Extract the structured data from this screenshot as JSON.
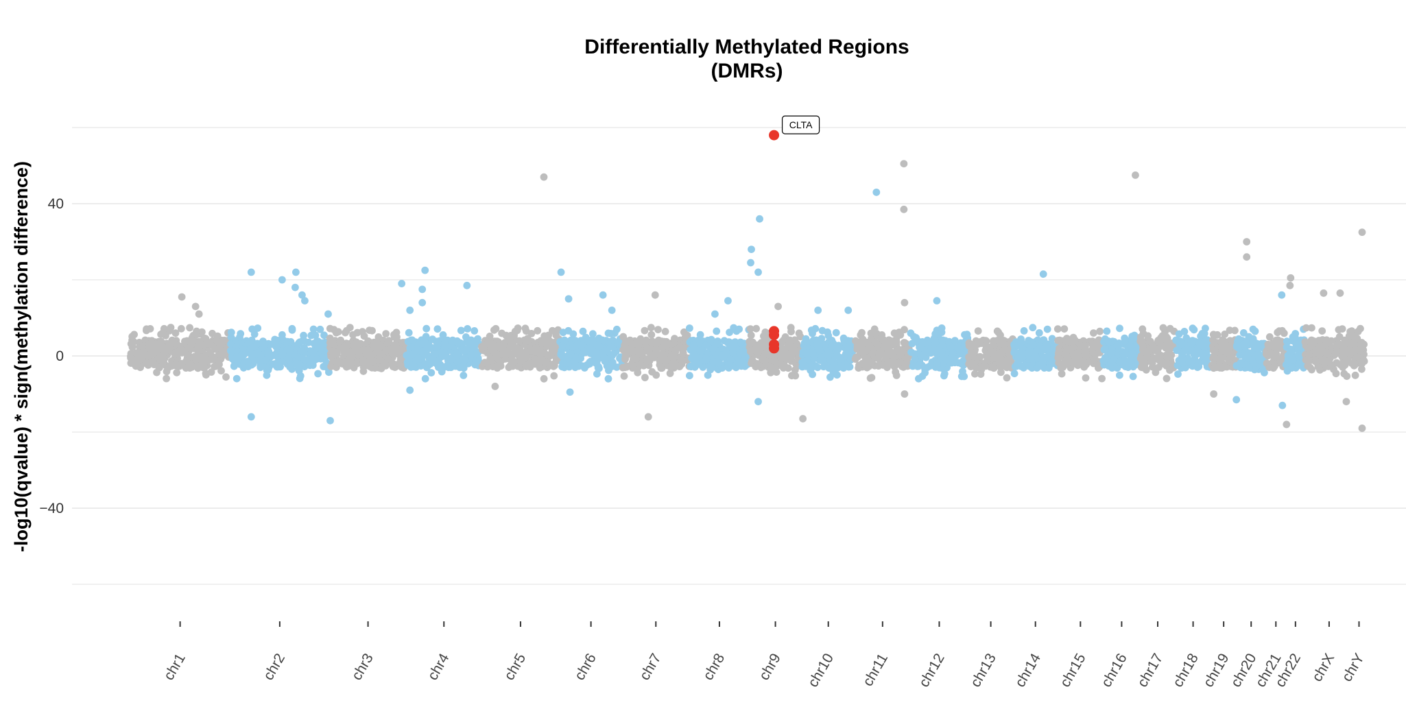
{
  "chart_data": {
    "type": "scatter",
    "title": [
      "Differentially Methylated Regions",
      "(DMRs)"
    ],
    "ylabel": "-log10(qvalue) * sign(methylation difference)",
    "xlabel": "",
    "ylim": [
      -60,
      60
    ],
    "yticks": [
      -40,
      0,
      40
    ],
    "grid": true,
    "legend": "none",
    "colors": {
      "gray": "#bdbdbd",
      "blue": "#93cbe9",
      "highlight": "#e8362a"
    },
    "chromosomes": [
      {
        "name": "chr1",
        "start": 0,
        "end": 145,
        "color": "gray"
      },
      {
        "name": "chr2",
        "start": 145,
        "end": 290,
        "color": "blue"
      },
      {
        "name": "chr3",
        "start": 290,
        "end": 402,
        "color": "gray"
      },
      {
        "name": "chr4",
        "start": 402,
        "end": 511,
        "color": "blue"
      },
      {
        "name": "chr5",
        "start": 511,
        "end": 625,
        "color": "gray"
      },
      {
        "name": "chr6",
        "start": 625,
        "end": 716,
        "color": "blue"
      },
      {
        "name": "chr7",
        "start": 716,
        "end": 814,
        "color": "gray"
      },
      {
        "name": "chr8",
        "start": 814,
        "end": 901,
        "color": "blue"
      },
      {
        "name": "chr9",
        "start": 901,
        "end": 977,
        "color": "gray"
      },
      {
        "name": "chr10",
        "start": 977,
        "end": 1055,
        "color": "blue"
      },
      {
        "name": "chr11",
        "start": 1055,
        "end": 1135,
        "color": "gray"
      },
      {
        "name": "chr12",
        "start": 1135,
        "end": 1220,
        "color": "blue"
      },
      {
        "name": "chr13",
        "start": 1220,
        "end": 1285,
        "color": "gray"
      },
      {
        "name": "chr14",
        "start": 1285,
        "end": 1350,
        "color": "blue"
      },
      {
        "name": "chr15",
        "start": 1350,
        "end": 1416,
        "color": "gray"
      },
      {
        "name": "chr16",
        "start": 1416,
        "end": 1470,
        "color": "blue"
      },
      {
        "name": "chr17",
        "start": 1470,
        "end": 1521,
        "color": "gray"
      },
      {
        "name": "chr18",
        "start": 1521,
        "end": 1573,
        "color": "blue"
      },
      {
        "name": "chr19",
        "start": 1573,
        "end": 1610,
        "color": "gray"
      },
      {
        "name": "chr20",
        "start": 1610,
        "end": 1653,
        "color": "blue"
      },
      {
        "name": "chr21",
        "start": 1653,
        "end": 1682,
        "color": "gray"
      },
      {
        "name": "chr22",
        "start": 1682,
        "end": 1710,
        "color": "blue"
      },
      {
        "name": "chrX",
        "start": 1710,
        "end": 1780,
        "color": "gray"
      },
      {
        "name": "chrY",
        "start": 1780,
        "end": 1797,
        "color": "gray"
      }
    ],
    "outliers": [
      {
        "chr": "chr1",
        "x": 75,
        "y": 15.5
      },
      {
        "chr": "chr1",
        "x": 95,
        "y": 13
      },
      {
        "chr": "chr1",
        "x": 100,
        "y": 11
      },
      {
        "chr": "chr2",
        "x": 176,
        "y": 22
      },
      {
        "chr": "chr2",
        "x": 176,
        "y": -16
      },
      {
        "chr": "chr2",
        "x": 221,
        "y": 20
      },
      {
        "chr": "chr2",
        "x": 241,
        "y": 22
      },
      {
        "chr": "chr2",
        "x": 240,
        "y": 18
      },
      {
        "chr": "chr2",
        "x": 250,
        "y": 16
      },
      {
        "chr": "chr2",
        "x": 254,
        "y": 14.5
      },
      {
        "chr": "chr2",
        "x": 291,
        "y": -17
      },
      {
        "chr": "chr2",
        "x": 288,
        "y": 11
      },
      {
        "chr": "chr4",
        "x": 395,
        "y": 19
      },
      {
        "chr": "chr4",
        "x": 407,
        "y": 12
      },
      {
        "chr": "chr4",
        "x": 407,
        "y": -9
      },
      {
        "chr": "chr4",
        "x": 425,
        "y": 17.5
      },
      {
        "chr": "chr4",
        "x": 425,
        "y": 14
      },
      {
        "chr": "chr4",
        "x": 429,
        "y": 22.5
      },
      {
        "chr": "chr4",
        "x": 490,
        "y": 18.5
      },
      {
        "chr": "chr5",
        "x": 602,
        "y": 47
      },
      {
        "chr": "chr5",
        "x": 531,
        "y": -8
      },
      {
        "chr": "chr6",
        "x": 627,
        "y": 22
      },
      {
        "chr": "chr6",
        "x": 638,
        "y": 15
      },
      {
        "chr": "chr6",
        "x": 640,
        "y": -9.5
      },
      {
        "chr": "chr6",
        "x": 688,
        "y": 16
      },
      {
        "chr": "chr6",
        "x": 701,
        "y": 12
      },
      {
        "chr": "chr7",
        "x": 754,
        "y": -16
      },
      {
        "chr": "chr7",
        "x": 764,
        "y": 16
      },
      {
        "chr": "chr8",
        "x": 851,
        "y": 11
      },
      {
        "chr": "chr8",
        "x": 870,
        "y": 14.5
      },
      {
        "chr": "chr8",
        "x": 904,
        "y": 28
      },
      {
        "chr": "chr8",
        "x": 903,
        "y": 24.5
      },
      {
        "chr": "chr8",
        "x": 914,
        "y": 22
      },
      {
        "chr": "chr8",
        "x": 916,
        "y": 36
      },
      {
        "chr": "chr8",
        "x": 914,
        "y": -12
      },
      {
        "chr": "chr9",
        "x": 943,
        "y": 13
      },
      {
        "chr": "chr9",
        "x": 979,
        "y": -16.5
      },
      {
        "chr": "chr10",
        "x": 1001,
        "y": 12
      },
      {
        "chr": "chr10",
        "x": 1045,
        "y": 12
      },
      {
        "chr": "chr10",
        "x": 1086,
        "y": 43
      },
      {
        "chr": "chr11",
        "x": 1126,
        "y": 50.5
      },
      {
        "chr": "chr11",
        "x": 1126,
        "y": 38.5
      },
      {
        "chr": "chr11",
        "x": 1127,
        "y": 14
      },
      {
        "chr": "chr11",
        "x": 1127,
        "y": -10
      },
      {
        "chr": "chr12",
        "x": 1174,
        "y": 14.5
      },
      {
        "chr": "chr14",
        "x": 1329,
        "y": 21.5
      },
      {
        "chr": "chr17",
        "x": 1463,
        "y": 47.5
      },
      {
        "chr": "chr19",
        "x": 1577,
        "y": -10
      },
      {
        "chr": "chr20",
        "x": 1610,
        "y": -11.5
      },
      {
        "chr": "chr21",
        "x": 1625,
        "y": 30
      },
      {
        "chr": "chr21",
        "x": 1625,
        "y": 26
      },
      {
        "chr": "chr22",
        "x": 1676,
        "y": 16
      },
      {
        "chr": "chr22",
        "x": 1677,
        "y": -13
      },
      {
        "chr": "chrX",
        "x": 1689,
        "y": 20.5
      },
      {
        "chr": "chrX",
        "x": 1688,
        "y": 18.5
      },
      {
        "chr": "chrX",
        "x": 1683,
        "y": -18
      },
      {
        "chr": "chrX",
        "x": 1737,
        "y": 16.5
      },
      {
        "chr": "chrX",
        "x": 1761,
        "y": 16.5
      },
      {
        "chr": "chrY",
        "x": 1793,
        "y": 32.5
      },
      {
        "chr": "chrY",
        "x": 1793,
        "y": -19
      },
      {
        "chr": "chrY",
        "x": 1770,
        "y": -12
      }
    ],
    "highlighted": [
      {
        "x": 937,
        "y": 58,
        "label": "CLTA"
      },
      {
        "x": 937,
        "y": 6.5,
        "label": ""
      },
      {
        "x": 937,
        "y": 5.5,
        "label": ""
      },
      {
        "x": 937,
        "y": 3,
        "label": ""
      },
      {
        "x": 937,
        "y": 2,
        "label": ""
      }
    ]
  }
}
